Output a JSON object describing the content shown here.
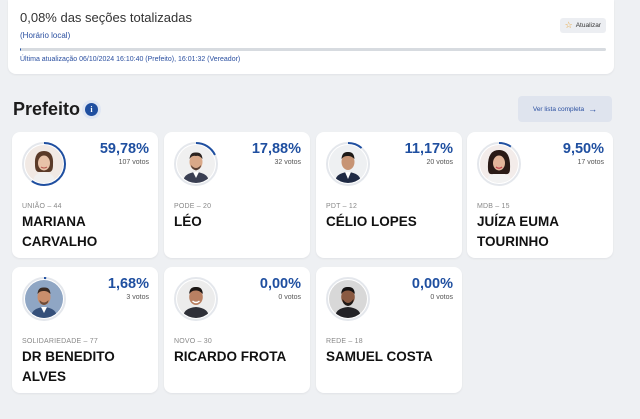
{
  "status": {
    "title": "0,08% das seções totalizadas",
    "local_time": "(Horário local)",
    "refresh_label": "Atualizar",
    "progress_fraction": 0.0008,
    "last_update": "Última atualização 06/10/2024 16:10:40 (Prefeito), 16:01:32 (Vereador)"
  },
  "section": {
    "title": "Prefeito",
    "info_icon": "info-icon",
    "full_list_label": "Ver lista completa",
    "full_list_arrow": "→"
  },
  "candidates": [
    {
      "name": "MARIANA CARVALHO",
      "party": "UNIÃO – 44",
      "percent": "59,78%",
      "share": 0.5978,
      "votes": "107 votos"
    },
    {
      "name": "LÉO",
      "party": "PODE – 20",
      "percent": "17,88%",
      "share": 0.1788,
      "votes": "32 votos"
    },
    {
      "name": "CÉLIO LOPES",
      "party": "PDT – 12",
      "percent": "11,17%",
      "share": 0.1117,
      "votes": "20 votos"
    },
    {
      "name": "JUÍZA EUMA TOURINHO",
      "party": "MDB – 15",
      "percent": "9,50%",
      "share": 0.095,
      "votes": "17 votos"
    },
    {
      "name": "DR BENEDITO ALVES",
      "party": "SOLIDARIEDADE – 77",
      "percent": "1,68%",
      "share": 0.0168,
      "votes": "3 votos"
    },
    {
      "name": "RICARDO FROTA",
      "party": "NOVO – 30",
      "percent": "0,00%",
      "share": 0.0,
      "votes": "0 votos"
    },
    {
      "name": "SAMUEL COSTA",
      "party": "REDE – 18",
      "percent": "0,00%",
      "share": 0.0,
      "votes": "0 votos"
    }
  ],
  "colors": {
    "accent": "#1f4fa0",
    "ring_track": "#e4e7ec"
  }
}
